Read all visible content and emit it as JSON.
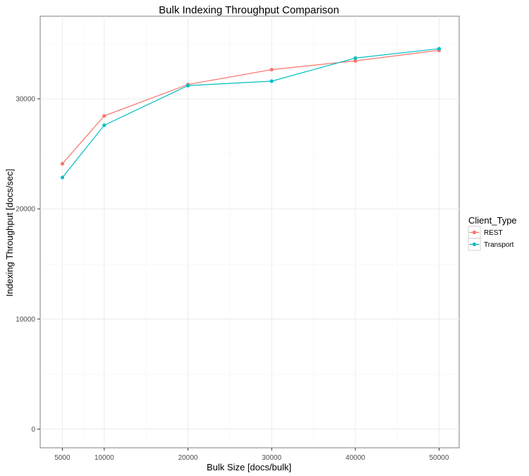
{
  "chart_data": {
    "type": "line",
    "title": "Bulk Indexing Throughput Comparison",
    "xlabel": "Bulk Size [docs/bulk]",
    "ylabel": "Indexing Throughput [docs/sec]",
    "x": [
      5000,
      10000,
      20000,
      30000,
      40000,
      50000
    ],
    "xlim": [
      2350,
      52400
    ],
    "ylim": [
      -1700,
      37500
    ],
    "xticks": [
      "5000",
      "10000",
      "20000",
      "30000",
      "40000",
      "50000"
    ],
    "yticks": [
      "0",
      "10000",
      "20000",
      "30000"
    ],
    "grid": true,
    "legend": {
      "title": "Client_Type",
      "placement": "right",
      "entries": [
        "REST",
        "Transport"
      ]
    },
    "series": [
      {
        "name": "REST",
        "color": "#F8766D",
        "values": [
          24100,
          28450,
          31300,
          32650,
          33450,
          34400
        ]
      },
      {
        "name": "Transport",
        "color": "#00BFC4",
        "values": [
          22850,
          27600,
          31200,
          31600,
          33700,
          34550
        ]
      }
    ]
  }
}
